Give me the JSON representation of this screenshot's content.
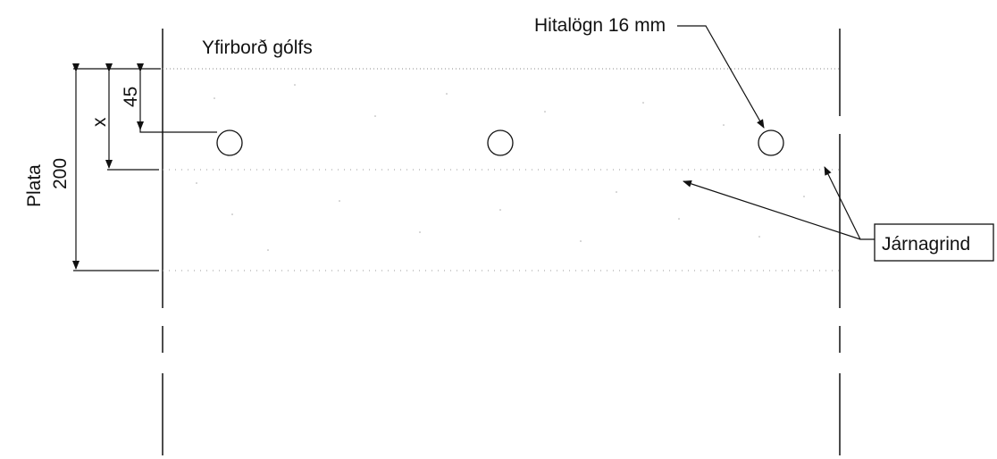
{
  "labels": {
    "floor_surface": "Yfirborð gólfs",
    "heating_pipe": "Hitalögn 16 mm",
    "rebar_mesh": "Járnagrind",
    "slab": "Plata",
    "slab_thickness": "200",
    "cover_depth": "45",
    "pipe_depth": "x"
  },
  "colors": {
    "line": "#111111",
    "dots": "#9a9a9a"
  }
}
